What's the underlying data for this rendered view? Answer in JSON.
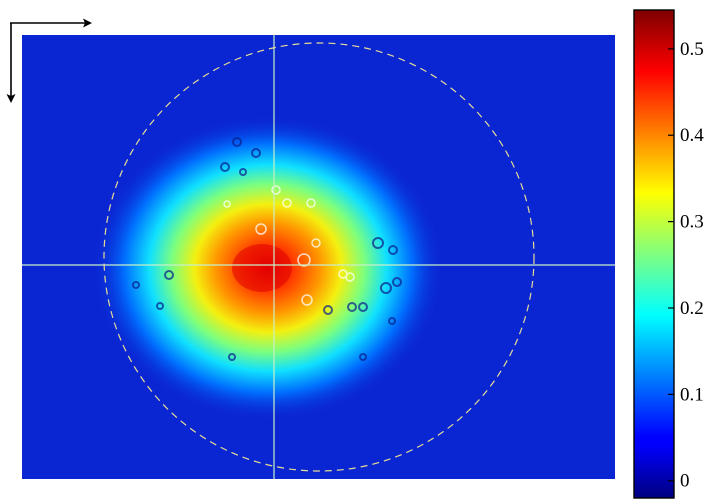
{
  "chart_data": {
    "type": "heatmap",
    "title": "",
    "xlabel": "",
    "ylabel": "",
    "colormap": "jet",
    "colorbar": {
      "min": -0.02,
      "max": 0.545,
      "ticks": [
        {
          "value": 0,
          "label": "0"
        },
        {
          "value": 0.1,
          "label": "0.1"
        },
        {
          "value": 0.2,
          "label": "0.2"
        },
        {
          "value": 0.3,
          "label": "0.3"
        },
        {
          "value": 0.4,
          "label": "0.4"
        },
        {
          "value": 0.5,
          "label": "0.5"
        }
      ]
    },
    "peak_value": 0.52,
    "background_value": 0.02,
    "crosshair_color": "#c8f0c8",
    "circle_color": "#e6dc96",
    "orientation_arrows": [
      "right",
      "down"
    ]
  }
}
